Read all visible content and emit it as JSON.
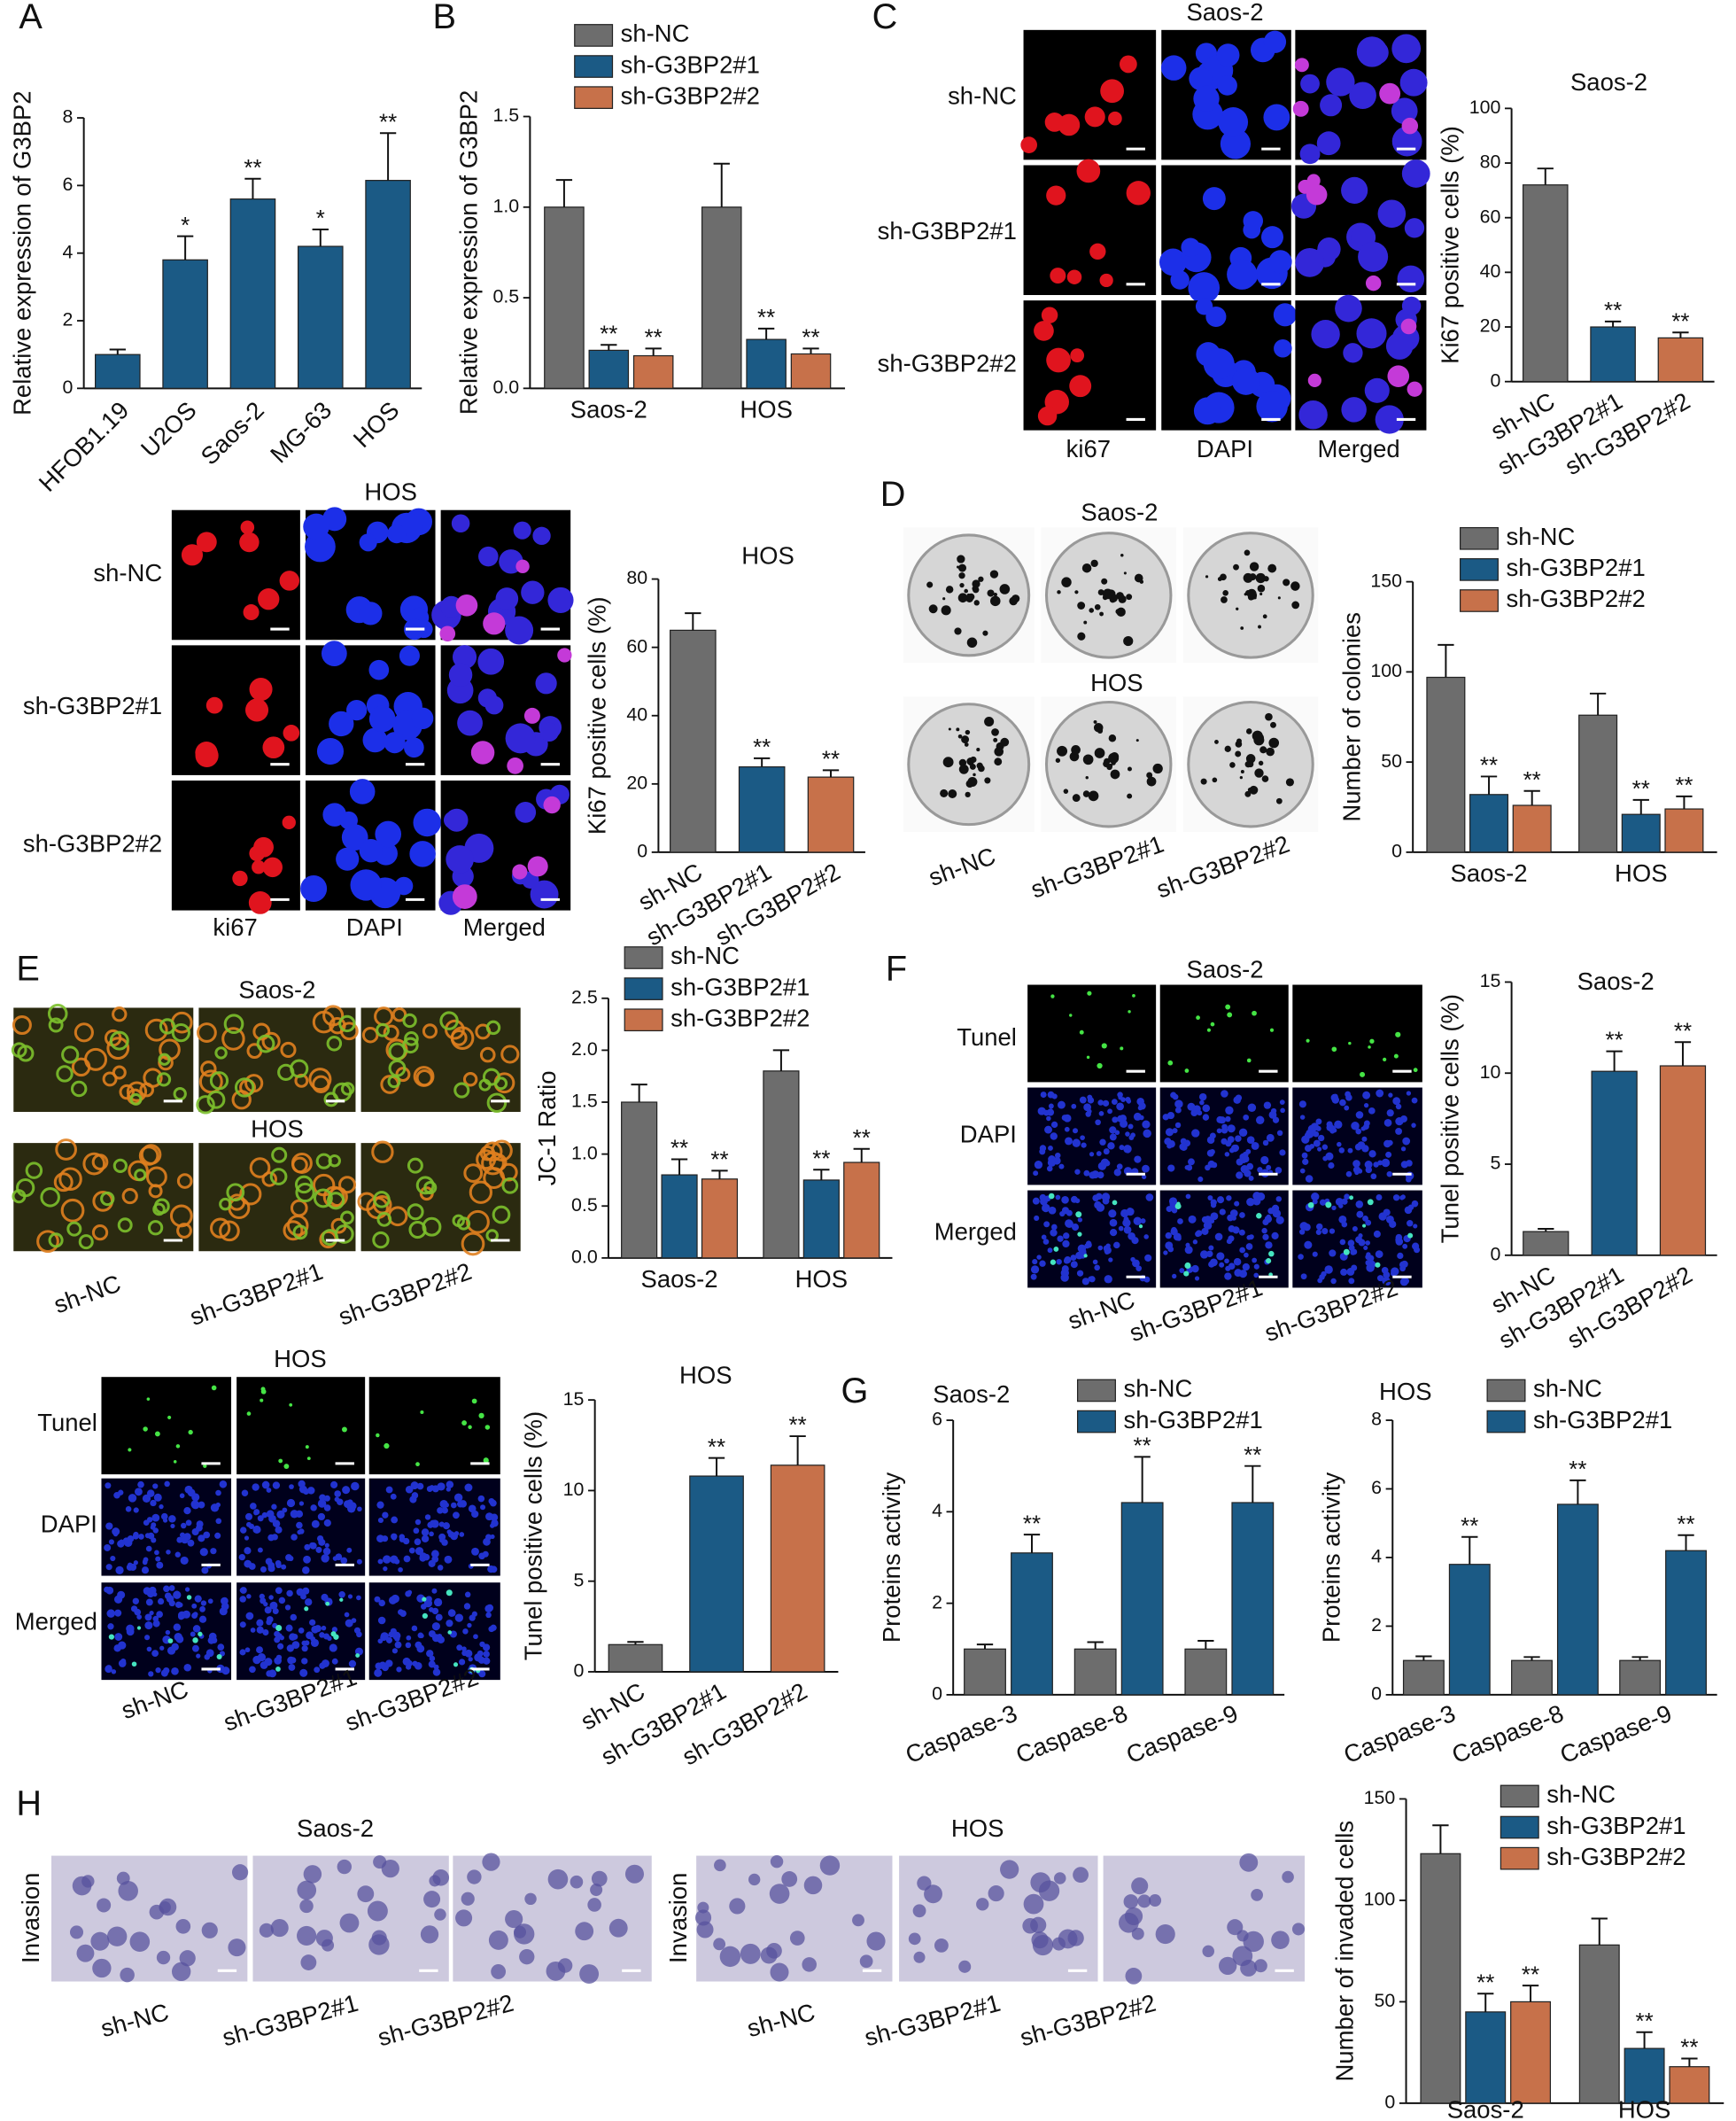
{
  "panel_letters": [
    "A",
    "B",
    "C",
    "D",
    "E",
    "F",
    "G",
    "H"
  ],
  "chart_data": [
    {
      "type": "bar",
      "ylabel": "Relative expression of G3BP2",
      "categories": [
        "HFOB1.19",
        "U2OS",
        "Saos-2",
        "MG-63",
        "HOS"
      ],
      "values": [
        1,
        3.8,
        5.6,
        4.2,
        6.15
      ],
      "errors": [
        0.15,
        0.7,
        0.6,
        0.5,
        1.4
      ],
      "significance": [
        null,
        "*",
        "**",
        "*",
        "**"
      ],
      "color": "#1b5a85",
      "ylim": [
        0,
        8
      ],
      "yticks": [
        0,
        2,
        4,
        6,
        8
      ]
    },
    {
      "type": "bar",
      "ylabel": "Relative expression of G3BP2",
      "categories": [
        "Saos-2",
        "HOS"
      ],
      "series": [
        {
          "name": "sh-NC",
          "color": "#6d6d6d",
          "values": [
            1,
            1
          ],
          "errors": [
            0.15,
            0.24
          ],
          "significance": [
            null,
            null
          ]
        },
        {
          "name": "sh-G3BP2#1",
          "color": "#1b5a85",
          "values": [
            0.21,
            0.27
          ],
          "errors": [
            0.03,
            0.06
          ],
          "significance": [
            "**",
            "**"
          ]
        },
        {
          "name": "sh-G3BP2#2",
          "color": "#c7714a",
          "values": [
            0.18,
            0.19
          ],
          "errors": [
            0.04,
            0.03
          ],
          "significance": [
            "**",
            "**"
          ]
        }
      ],
      "ylim": [
        0,
        1.5
      ],
      "yticks": [
        {
          "value": 0,
          "label": "0.0"
        },
        0.5,
        {
          "value": 1,
          "label": "1.0"
        },
        1.5
      ]
    },
    {
      "type": "bar",
      "title": "Saos-2",
      "ylabel": "Ki67 positive cells (%)",
      "categories": [
        "sh-NC",
        "sh-G3BP2#1",
        "sh-G3BP2#2"
      ],
      "values": [
        72,
        20,
        16
      ],
      "errors": [
        6,
        2,
        2
      ],
      "significance": [
        null,
        "**",
        "**"
      ],
      "colors": [
        "#6d6d6d",
        "#1b5a85",
        "#c7714a"
      ],
      "ylim": [
        0,
        100
      ],
      "yticks": [
        0,
        20,
        40,
        60,
        80,
        100
      ]
    },
    {
      "type": "bar",
      "title": "HOS",
      "ylabel": "Ki67 positive cells (%)",
      "categories": [
        "sh-NC",
        "sh-G3BP2#1",
        "sh-G3BP2#2"
      ],
      "values": [
        65,
        25,
        22
      ],
      "errors": [
        5,
        2.5,
        2
      ],
      "significance": [
        null,
        "**",
        "**"
      ],
      "colors": [
        "#6d6d6d",
        "#1b5a85",
        "#c7714a"
      ],
      "ylim": [
        0,
        80
      ],
      "yticks": [
        0,
        20,
        40,
        60,
        80
      ]
    },
    {
      "type": "bar",
      "ylabel": "Number of colonies",
      "categories": [
        "Saos-2",
        "HOS"
      ],
      "series": [
        {
          "name": "sh-NC",
          "color": "#6d6d6d",
          "values": [
            97,
            76
          ],
          "errors": [
            18,
            12
          ],
          "significance": [
            null,
            null
          ]
        },
        {
          "name": "sh-G3BP2#1",
          "color": "#1b5a85",
          "values": [
            32,
            21
          ],
          "errors": [
            10,
            8
          ],
          "significance": [
            "**",
            "**"
          ]
        },
        {
          "name": "sh-G3BP2#2",
          "color": "#c7714a",
          "values": [
            26,
            24
          ],
          "errors": [
            8,
            7
          ],
          "significance": [
            "**",
            "**"
          ]
        }
      ],
      "ylim": [
        0,
        150
      ],
      "yticks": [
        0,
        50,
        100,
        150
      ]
    },
    {
      "type": "bar",
      "ylabel": "JC-1 Ratio",
      "categories": [
        "Saos-2",
        "HOS"
      ],
      "series": [
        {
          "name": "sh-NC",
          "color": "#6d6d6d",
          "values": [
            1.5,
            1.8
          ],
          "errors": [
            0.17,
            0.2
          ],
          "significance": [
            null,
            null
          ]
        },
        {
          "name": "sh-G3BP2#1",
          "color": "#1b5a85",
          "values": [
            0.8,
            0.75
          ],
          "errors": [
            0.15,
            0.1
          ],
          "significance": [
            "**",
            "**"
          ]
        },
        {
          "name": "sh-G3BP2#2",
          "color": "#c7714a",
          "values": [
            0.76,
            0.92
          ],
          "errors": [
            0.08,
            0.13
          ],
          "significance": [
            "**",
            "**"
          ]
        }
      ],
      "ylim": [
        0,
        2.5
      ],
      "yticks": [
        {
          "value": 0,
          "label": "0.0"
        },
        0.5,
        {
          "value": 1,
          "label": "1.0"
        },
        1.5,
        {
          "value": 2,
          "label": "2.0"
        },
        2.5
      ]
    },
    {
      "type": "bar",
      "title": "Saos-2",
      "ylabel": "Tunel positive cells (%)",
      "categories": [
        "sh-NC",
        "sh-G3BP2#1",
        "sh-G3BP2#2"
      ],
      "values": [
        1.3,
        10.1,
        10.4
      ],
      "errors": [
        0.15,
        1.1,
        1.3
      ],
      "significance": [
        null,
        "**",
        "**"
      ],
      "colors": [
        "#6d6d6d",
        "#1b5a85",
        "#c7714a"
      ],
      "ylim": [
        0,
        15
      ],
      "yticks": [
        0,
        5,
        10,
        15
      ]
    },
    {
      "type": "bar",
      "title": "HOS",
      "ylabel": "Tunel positive cells (%)",
      "categories": [
        "sh-NC",
        "sh-G3BP2#1",
        "sh-G3BP2#2"
      ],
      "values": [
        1.5,
        10.8,
        11.4
      ],
      "errors": [
        0.15,
        1,
        1.6
      ],
      "significance": [
        null,
        "**",
        "**"
      ],
      "colors": [
        "#6d6d6d",
        "#1b5a85",
        "#c7714a"
      ],
      "ylim": [
        0,
        15
      ],
      "yticks": [
        0,
        5,
        10,
        15
      ]
    },
    {
      "type": "bar",
      "title": "Saos-2",
      "ylabel": "Proteins activity",
      "categories": [
        "Caspase-3",
        "Caspase-8",
        "Caspase-9"
      ],
      "series": [
        {
          "name": "sh-NC",
          "color": "#6d6d6d",
          "values": [
            1,
            1,
            1
          ],
          "errors": [
            0.1,
            0.15,
            0.18
          ],
          "significance": [
            null,
            null,
            null
          ]
        },
        {
          "name": "sh-G3BP2#1",
          "color": "#1b5a85",
          "values": [
            3.1,
            4.2,
            4.2
          ],
          "errors": [
            0.4,
            1,
            0.8
          ],
          "significance": [
            "**",
            "**",
            "**"
          ]
        }
      ],
      "ylim": [
        0,
        6
      ],
      "yticks": [
        0,
        2,
        4,
        6
      ]
    },
    {
      "type": "bar",
      "title": "HOS",
      "ylabel": "Proteins activity",
      "categories": [
        "Caspase-3",
        "Caspase-8",
        "Caspase-9"
      ],
      "series": [
        {
          "name": "sh-NC",
          "color": "#6d6d6d",
          "values": [
            1,
            1,
            1
          ],
          "errors": [
            0.12,
            0.1,
            0.1
          ],
          "significance": [
            null,
            null,
            null
          ]
        },
        {
          "name": "sh-G3BP2#1",
          "color": "#1b5a85",
          "values": [
            3.8,
            5.55,
            4.2
          ],
          "errors": [
            0.8,
            0.7,
            0.45
          ],
          "significance": [
            "**",
            "**",
            "**"
          ]
        }
      ],
      "ylim": [
        0,
        8
      ],
      "yticks": [
        0,
        2,
        4,
        6,
        8
      ]
    },
    {
      "type": "bar",
      "ylabel": "Number of invaded cells",
      "categories": [
        "Saos-2",
        "HOS"
      ],
      "series": [
        {
          "name": "sh-NC",
          "color": "#6d6d6d",
          "values": [
            123,
            78
          ],
          "errors": [
            14,
            13
          ],
          "significance": [
            null,
            null
          ]
        },
        {
          "name": "sh-G3BP2#1",
          "color": "#1b5a85",
          "values": [
            45,
            27
          ],
          "errors": [
            9,
            8
          ],
          "significance": [
            "**",
            "**"
          ]
        },
        {
          "name": "sh-G3BP2#2",
          "color": "#c7714a",
          "values": [
            50,
            18
          ],
          "errors": [
            8,
            4
          ],
          "significance": [
            "**",
            "**"
          ]
        }
      ],
      "ylim": [
        0,
        150
      ],
      "yticks": [
        0,
        50,
        100,
        150
      ]
    }
  ],
  "image_panels": [
    {
      "titles": [
        "Saos-2"
      ],
      "row_labels": [
        "sh-NC",
        "sh-G3BP2#1",
        "sh-G3BP2#2"
      ],
      "column_labels": [
        "ki67",
        "DAPI",
        "Merged"
      ]
    },
    {
      "titles": [
        "HOS"
      ],
      "row_labels": [
        "sh-NC",
        "sh-G3BP2#1",
        "sh-G3BP2#2"
      ],
      "column_labels": [
        "ki67",
        "DAPI",
        "Merged"
      ]
    },
    {
      "titles": [
        "Saos-2",
        "HOS"
      ],
      "column_labels": [
        "sh-NC",
        "sh-G3BP2#1",
        "sh-G3BP2#2"
      ]
    },
    {
      "titles": [
        "Saos-2",
        "HOS"
      ],
      "column_labels": [
        "sh-NC",
        "sh-G3BP2#1",
        "sh-G3BP2#2"
      ]
    },
    {
      "titles": [
        "Saos-2"
      ],
      "row_labels": [
        "Tunel",
        "DAPI",
        "Merged"
      ],
      "column_labels": [
        "sh-NC",
        "sh-G3BP2#1",
        "sh-G3BP2#2"
      ]
    },
    {
      "titles": [
        "HOS"
      ],
      "row_labels": [
        "Tunel",
        "DAPI",
        "Merged"
      ],
      "column_labels": [
        "sh-NC",
        "sh-G3BP2#1",
        "sh-G3BP2#2"
      ]
    },
    {
      "titles": [
        "Saos-2"
      ],
      "row_labels": [
        "Invasion"
      ],
      "column_labels": [
        "sh-NC",
        "sh-G3BP2#1",
        "sh-G3BP2#2"
      ]
    },
    {
      "titles": [
        "HOS"
      ],
      "row_labels": [
        "Invasion"
      ],
      "column_labels": [
        "sh-NC",
        "sh-G3BP2#1",
        "sh-G3BP2#2"
      ]
    }
  ]
}
